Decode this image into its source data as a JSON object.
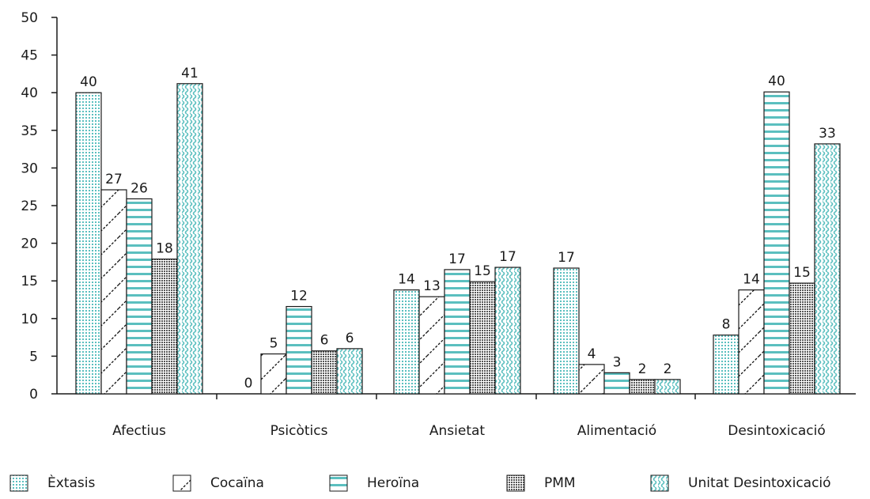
{
  "chart_data": {
    "type": "bar",
    "categories": [
      "Afectius",
      "Psicòtics",
      "Ansietat",
      "Alimentació",
      "Desintoxicació"
    ],
    "series": [
      {
        "name": "Èxtasis",
        "values": [
          40,
          0,
          14,
          17,
          8
        ],
        "color": "#5bbfbf",
        "pattern": "dots"
      },
      {
        "name": "Cocaïna",
        "values": [
          27,
          5,
          13,
          4,
          14
        ],
        "color": "#111111",
        "pattern": "diagonal"
      },
      {
        "name": "Heroïna",
        "values": [
          26,
          12,
          17,
          3,
          40
        ],
        "color": "#5bbfbf",
        "pattern": "horizontal"
      },
      {
        "name": "PMM",
        "values": [
          18,
          6,
          15,
          2,
          15
        ],
        "color": "#555555",
        "pattern": "dense-dots"
      },
      {
        "name": "Unitat Desintoxicació",
        "values": [
          41,
          6,
          17,
          2,
          33
        ],
        "color": "#5bbfbf",
        "pattern": "wave"
      }
    ],
    "plotted_values": [
      [
        40,
        0,
        13.8,
        16.7,
        7.8
      ],
      [
        27.1,
        5.3,
        12.9,
        3.9,
        13.8
      ],
      [
        25.9,
        11.6,
        16.5,
        2.8,
        40.1
      ],
      [
        17.9,
        5.7,
        14.9,
        1.9,
        14.7
      ],
      [
        41.2,
        6,
        16.8,
        1.9,
        33.2
      ]
    ],
    "title": "",
    "xlabel": "",
    "ylabel": "",
    "ylim": [
      0,
      50
    ],
    "yticks": [
      0,
      5,
      10,
      15,
      20,
      25,
      30,
      35,
      40,
      45,
      50
    ],
    "grid": false,
    "legend_position": "bottom"
  }
}
